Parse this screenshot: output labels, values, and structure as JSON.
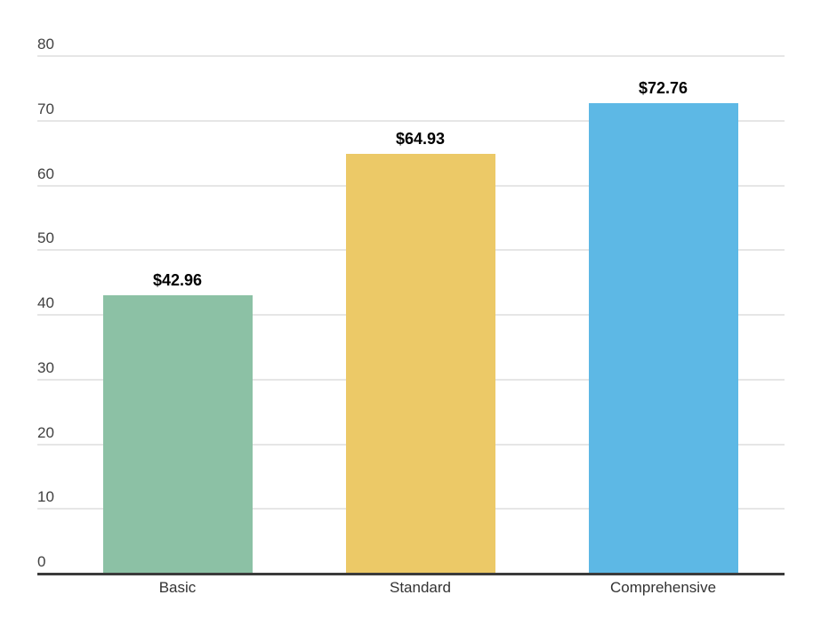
{
  "chart_data": {
    "type": "bar",
    "title": "",
    "xlabel": "",
    "ylabel": "",
    "categories": [
      "Basic",
      "Standard",
      "Comprehensive"
    ],
    "values": [
      42.96,
      64.93,
      72.76
    ],
    "value_labels": [
      "$42.96",
      "$64.93",
      "$72.76"
    ],
    "bar_colors": [
      "#8CC1A5",
      "#ECC967",
      "#5DB8E5"
    ],
    "ylim": [
      0,
      80
    ],
    "ytick_interval": 10,
    "ytick_labels": [
      "0",
      "10",
      "20",
      "30",
      "40",
      "50",
      "60",
      "70",
      "80"
    ],
    "grid": "on",
    "legend_position": "none",
    "colors": {
      "background": "#ffffff",
      "gridline": "#e6e6e6",
      "baseline": "#3b3b3b",
      "y_tick_text": "#404040",
      "x_tick_text": "#333333",
      "value_text": "#000000"
    }
  }
}
